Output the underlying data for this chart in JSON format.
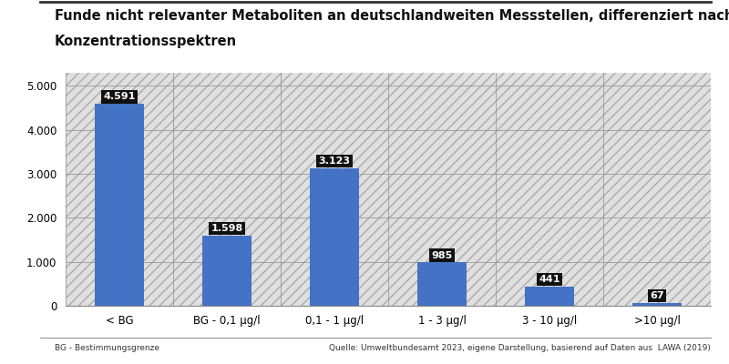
{
  "title_line1": "Funde nicht relevanter Metaboliten an deutschlandweiten Messstellen, differenziert nach",
  "title_line2": "Konzentrationsspektren",
  "categories": [
    "< BG",
    "BG - 0,1 µg/l",
    "0,1 - 1 µg/l",
    "1 - 3 µg/l",
    "3 - 10 µg/l",
    ">10 µg/l"
  ],
  "values": [
    4591,
    1598,
    3123,
    985,
    441,
    67
  ],
  "bar_color": "#4472C4",
  "label_bg_color": "#111111",
  "label_text_color": "#ffffff",
  "ylim": [
    0,
    5300
  ],
  "yticks": [
    0,
    1000,
    2000,
    3000,
    4000,
    5000
  ],
  "ytick_labels": [
    "0",
    "1.000",
    "2.000",
    "3.000",
    "4.000",
    "5.000"
  ],
  "grid_color": "#bbbbbb",
  "hatch_color": "#cccccc",
  "plot_bg_color": "#e8e8e8",
  "footer_left": "BG - Bestimmungsgrenze",
  "footer_right": "Quelle: Umweltbundesamt 2023, eigene Darstellung, basierend auf Daten aus  LAWA (2019)",
  "title_fontsize": 10.5,
  "tick_fontsize": 8.5,
  "label_fontsize": 8,
  "footer_fontsize": 6.5,
  "bar_width": 0.45
}
